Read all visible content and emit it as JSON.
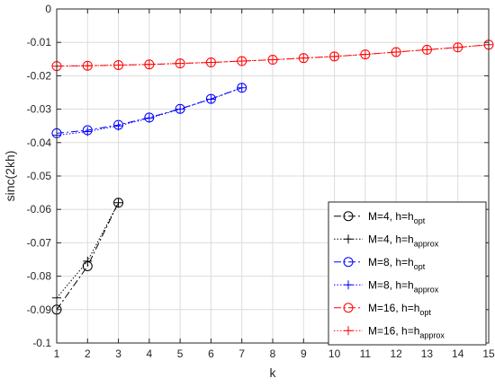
{
  "chart_data": {
    "type": "line",
    "xlabel": "k",
    "ylabel": "sinc(2kh)",
    "xlim": [
      1,
      15
    ],
    "ylim": [
      -0.1,
      0
    ],
    "xticks": [
      "1",
      "2",
      "3",
      "4",
      "5",
      "6",
      "7",
      "8",
      "9",
      "10",
      "11",
      "12",
      "13",
      "14",
      "15"
    ],
    "yticks": [
      "0",
      "-0.01",
      "-0.02",
      "-0.03",
      "-0.04",
      "-0.05",
      "-0.06",
      "-0.07",
      "-0.08",
      "-0.09",
      "-0.1"
    ],
    "grid": true,
    "legend_position": "lower-right",
    "series": [
      {
        "name": "M=4, h=h",
        "name_sub": "opt",
        "color": "#000000",
        "linestyle": "dashdot",
        "marker": "circle",
        "x": [
          1,
          2,
          3
        ],
        "y": [
          -0.09,
          -0.077,
          -0.058
        ]
      },
      {
        "name": "M=4, h=h",
        "name_sub": "approx",
        "color": "#000000",
        "linestyle": "dotted",
        "marker": "plus",
        "x": [
          1,
          2,
          3
        ],
        "y": [
          -0.0865,
          -0.0755,
          -0.058
        ]
      },
      {
        "name": "M=8, h=h",
        "name_sub": "opt",
        "color": "#0000ff",
        "linestyle": "dashdot",
        "marker": "circle",
        "x": [
          1,
          2,
          3,
          4,
          5,
          6,
          7
        ],
        "y": [
          -0.0372,
          -0.0363,
          -0.0347,
          -0.0325,
          -0.0299,
          -0.0269,
          -0.0236
        ]
      },
      {
        "name": "M=8, h=h",
        "name_sub": "approx",
        "color": "#0000ff",
        "linestyle": "dotted",
        "marker": "plus",
        "x": [
          1,
          2,
          3,
          4,
          5,
          6,
          7
        ],
        "y": [
          -0.0378,
          -0.0367,
          -0.035,
          -0.0327,
          -0.03,
          -0.027,
          -0.0236
        ]
      },
      {
        "name": "M=16, h=h",
        "name_sub": "opt",
        "color": "#ff0000",
        "linestyle": "dashdot",
        "marker": "circle",
        "x": [
          1,
          2,
          3,
          4,
          5,
          6,
          7,
          8,
          9,
          10,
          11,
          12,
          13,
          14,
          15
        ],
        "y": [
          -0.0171,
          -0.017,
          -0.0168,
          -0.0166,
          -0.0163,
          -0.016,
          -0.0156,
          -0.0152,
          -0.0147,
          -0.0142,
          -0.0136,
          -0.0129,
          -0.0122,
          -0.0115,
          -0.0107
        ]
      },
      {
        "name": "M=16, h=h",
        "name_sub": "approx",
        "color": "#ff0000",
        "linestyle": "dotted",
        "marker": "plus",
        "x": [
          1,
          2,
          3,
          4,
          5,
          6,
          7,
          8,
          9,
          10,
          11,
          12,
          13,
          14,
          15
        ],
        "y": [
          -0.0171,
          -0.017,
          -0.0168,
          -0.0166,
          -0.0163,
          -0.016,
          -0.0156,
          -0.0152,
          -0.0147,
          -0.0142,
          -0.0136,
          -0.0129,
          -0.0122,
          -0.0115,
          -0.0107
        ]
      }
    ]
  }
}
